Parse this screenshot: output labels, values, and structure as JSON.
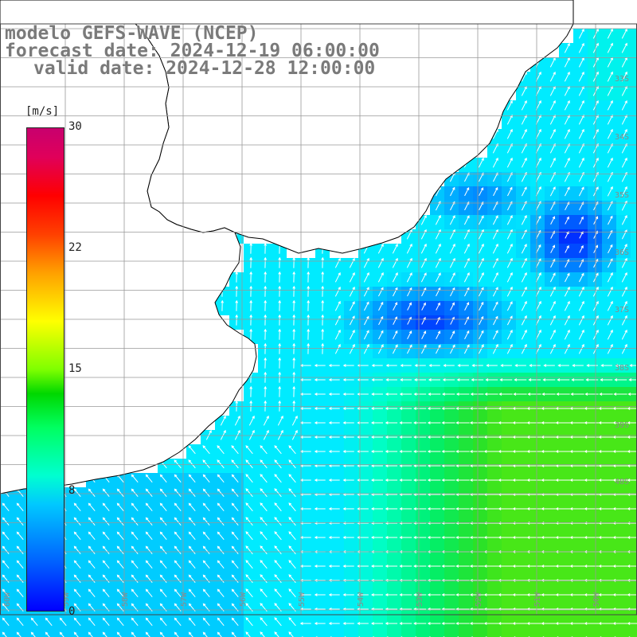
{
  "title": {
    "model": "modelo GEFS-WAVE (NCEP)",
    "forecast": "forecast date: 2024-12-19 06:00:00",
    "valid": "valid date: 2024-12-28 12:00:00"
  },
  "colorbar": {
    "unit": "[m/s]",
    "ticks": [
      "30",
      "22",
      "15",
      "8",
      "0"
    ],
    "tick_values": [
      30,
      22,
      15,
      8,
      0
    ]
  },
  "map": {
    "lat_labels": [
      "33S",
      "34S",
      "35S",
      "36S",
      "37S",
      "38S",
      "39S",
      "40S"
    ],
    "lon_labels": [
      "60W",
      "59W",
      "58W",
      "57W",
      "56W",
      "55W",
      "54W",
      "53W",
      "52W",
      "51W",
      "50W"
    ],
    "field": "wind speed",
    "arrows": "white wind direction vectors",
    "colors": {
      "land": "#ffffff",
      "coast": "#000000",
      "grid": "#b0b0b0",
      "low_wind": "#0000ff",
      "mid_wind": "#00e0ff",
      "high_wind": "#30e030"
    }
  }
}
